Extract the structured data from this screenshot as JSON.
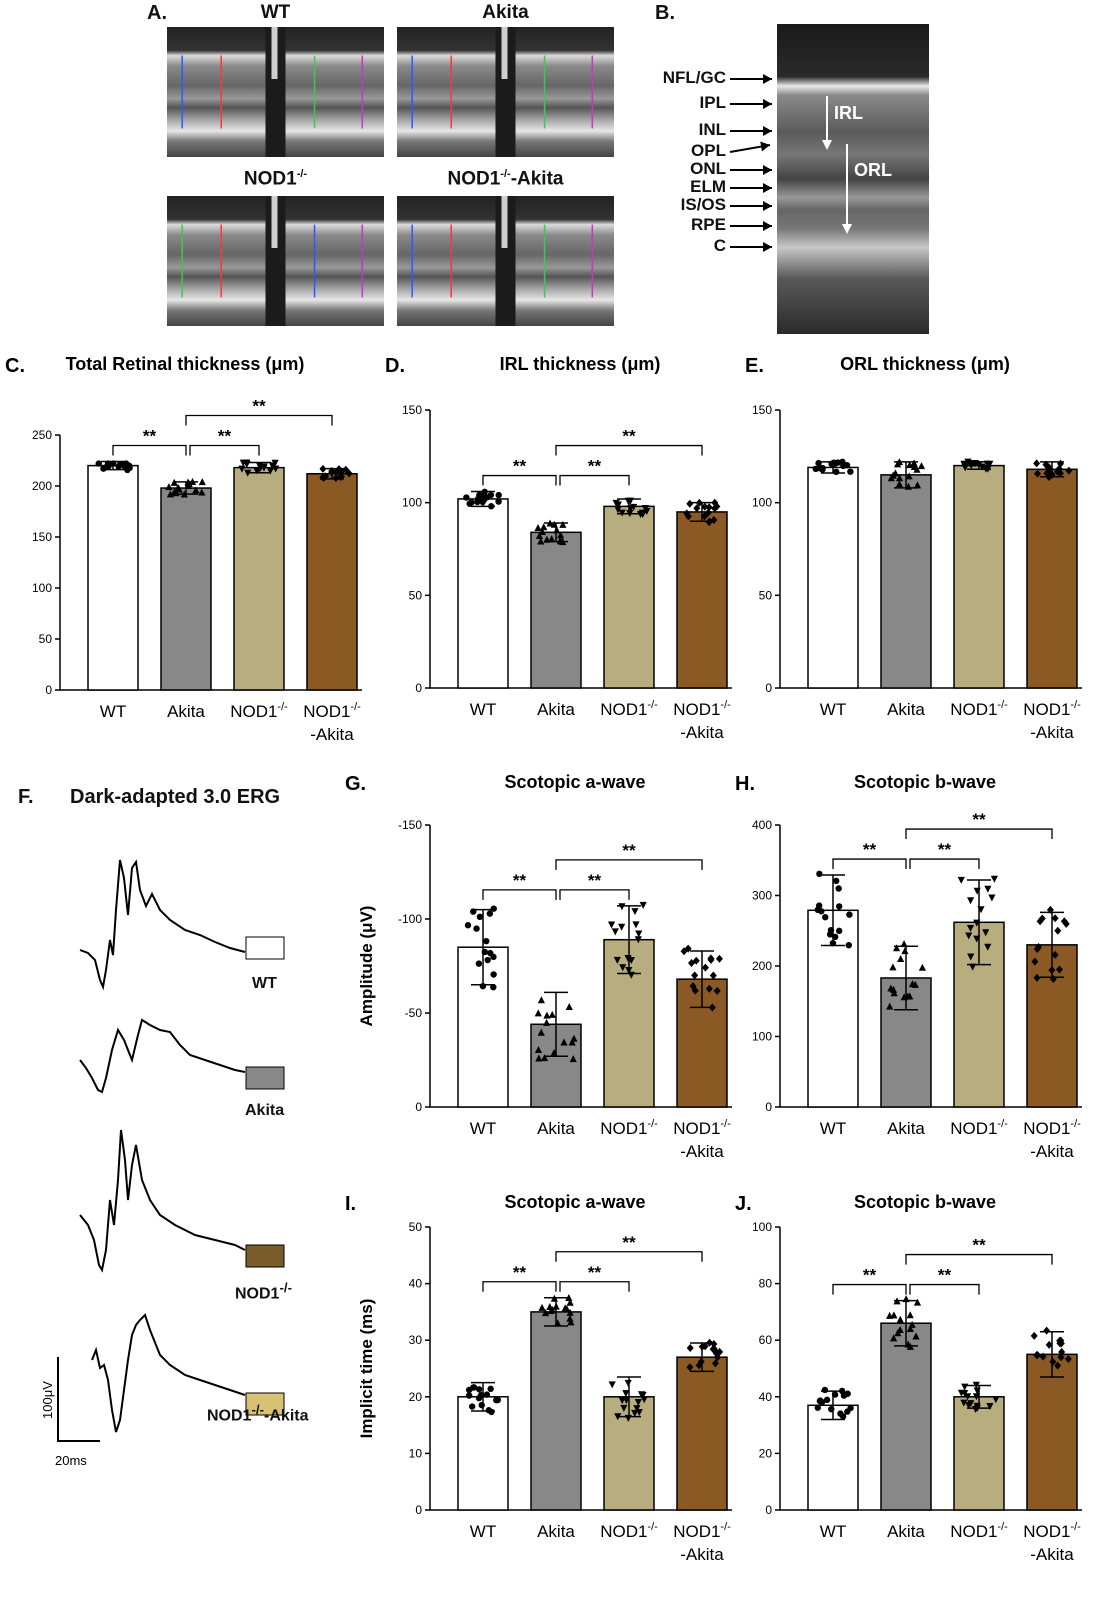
{
  "colors": {
    "WT": "#ffffff",
    "Akita": "#888888",
    "NOD1": "#b7ad7f",
    "NOD1Akita": "#8b5a24"
  },
  "panelA": {
    "letter": "A.",
    "labels": [
      "WT",
      "Akita",
      "NOD1-/-",
      "NOD1-/--Akita"
    ],
    "label_parts": [
      {
        "main": "WT",
        "sup": ""
      },
      {
        "main": "Akita",
        "sup": ""
      },
      {
        "main": "NOD1",
        "sup": "-/-"
      },
      {
        "main": "NOD1",
        "sup": "-/-",
        "tail": "-Akita"
      }
    ]
  },
  "panelB": {
    "letter": "B.",
    "layers": [
      "NFL/GC",
      "IPL",
      "INL",
      "OPL",
      "ONL",
      "ELM",
      "IS/OS",
      "RPE",
      "C"
    ],
    "arrow_labels": [
      "IRL",
      "ORL"
    ]
  },
  "panelF": {
    "letter": "F.",
    "title": "Dark-adapted 3.0 ERG",
    "traces": [
      {
        "name": "WT",
        "sup": "",
        "color": "#ffffff"
      },
      {
        "name": "Akita",
        "sup": "",
        "color": "#888888"
      },
      {
        "name": "NOD1",
        "sup": "-/-",
        "color": "#7a5b2a"
      },
      {
        "name": "NOD1",
        "sup": "-/-",
        "tail": "-Akita",
        "color": "#d9c173"
      }
    ],
    "scale_y": "100μV",
    "scale_x": "20ms"
  },
  "chart_data": [
    {
      "id": "C",
      "letter": "C.",
      "type": "bar",
      "title": "Total Retinal thickness (μm)",
      "ylabel": "",
      "ylim": [
        0,
        250
      ],
      "yticks": [
        0,
        50,
        100,
        150,
        200,
        250
      ],
      "inverted": false,
      "categories": [
        "WT",
        "Akita",
        "NOD1-/-",
        "NOD1-/--Akita"
      ],
      "values": [
        220,
        198,
        218,
        212
      ],
      "sd": [
        4,
        6,
        5,
        5
      ],
      "significance": [
        {
          "from": 0,
          "to": 1,
          "label": "**"
        },
        {
          "from": 1,
          "to": 2,
          "label": "**"
        },
        {
          "from": 1,
          "to": 3,
          "label": "**"
        }
      ]
    },
    {
      "id": "D",
      "letter": "D.",
      "type": "bar",
      "title": "IRL thickness (μm)",
      "ylabel": "",
      "ylim": [
        0,
        150
      ],
      "yticks": [
        0,
        50,
        100,
        150
      ],
      "inverted": false,
      "categories": [
        "WT",
        "Akita",
        "NOD1-/-",
        "NOD1-/--Akita"
      ],
      "values": [
        102,
        84,
        98,
        95
      ],
      "sd": [
        4,
        5,
        4,
        5
      ],
      "significance": [
        {
          "from": 0,
          "to": 1,
          "label": "**"
        },
        {
          "from": 1,
          "to": 2,
          "label": "**"
        },
        {
          "from": 1,
          "to": 3,
          "label": "**"
        }
      ]
    },
    {
      "id": "E",
      "letter": "E.",
      "type": "bar",
      "title": "ORL thickness (μm)",
      "ylabel": "",
      "ylim": [
        0,
        150
      ],
      "yticks": [
        0,
        50,
        100,
        150
      ],
      "inverted": false,
      "categories": [
        "WT",
        "Akita",
        "NOD1-/-",
        "NOD1-/--Akita"
      ],
      "values": [
        119,
        115,
        120,
        118
      ],
      "sd": [
        3,
        7,
        2,
        4
      ],
      "significance": []
    },
    {
      "id": "G",
      "letter": "G.",
      "type": "bar",
      "title": "Scotopic a-wave",
      "ylabel": "Amplitude (μV)",
      "ylim": [
        0,
        -150
      ],
      "yticks": [
        0,
        -50,
        -100,
        -150
      ],
      "inverted": true,
      "categories": [
        "WT",
        "Akita",
        "NOD1-/-",
        "NOD1-/--Akita"
      ],
      "values": [
        -85,
        -44,
        -89,
        -68
      ],
      "sd": [
        20,
        17,
        18,
        15
      ],
      "significance": [
        {
          "from": 0,
          "to": 1,
          "label": "**"
        },
        {
          "from": 1,
          "to": 2,
          "label": "**"
        },
        {
          "from": 1,
          "to": 3,
          "label": "**"
        }
      ]
    },
    {
      "id": "H",
      "letter": "H.",
      "type": "bar",
      "title": "Scotopic b-wave",
      "ylabel": "",
      "ylim": [
        0,
        400
      ],
      "yticks": [
        0,
        100,
        200,
        300,
        400
      ],
      "inverted": false,
      "categories": [
        "WT",
        "Akita",
        "NOD1-/-",
        "NOD1-/--Akita"
      ],
      "values": [
        279,
        183,
        262,
        230
      ],
      "sd": [
        50,
        45,
        60,
        46
      ],
      "significance": [
        {
          "from": 0,
          "to": 1,
          "label": "**"
        },
        {
          "from": 1,
          "to": 2,
          "label": "**"
        },
        {
          "from": 1,
          "to": 3,
          "label": "**"
        }
      ]
    },
    {
      "id": "I",
      "letter": "I.",
      "type": "bar",
      "title": "Scotopic a-wave",
      "ylabel": "Implicit time (ms)",
      "ylim": [
        0,
        50
      ],
      "yticks": [
        0,
        10,
        20,
        30,
        40,
        50
      ],
      "inverted": false,
      "categories": [
        "WT",
        "Akita",
        "NOD1-/-",
        "NOD1-/--Akita"
      ],
      "values": [
        20,
        35,
        20,
        27
      ],
      "sd": [
        2.5,
        2.5,
        3.5,
        2.5
      ],
      "significance": [
        {
          "from": 0,
          "to": 1,
          "label": "**"
        },
        {
          "from": 1,
          "to": 2,
          "label": "**"
        },
        {
          "from": 1,
          "to": 3,
          "label": "**"
        }
      ]
    },
    {
      "id": "J",
      "letter": "J.",
      "type": "bar",
      "title": "Scotopic b-wave",
      "ylabel": "",
      "ylim": [
        0,
        100
      ],
      "yticks": [
        0,
        20,
        40,
        60,
        80,
        100
      ],
      "inverted": false,
      "categories": [
        "WT",
        "Akita",
        "NOD1-/-",
        "NOD1-/--Akita"
      ],
      "values": [
        37,
        66,
        40,
        55
      ],
      "sd": [
        5,
        8,
        4,
        8
      ],
      "significance": [
        {
          "from": 0,
          "to": 1,
          "label": "**"
        },
        {
          "from": 1,
          "to": 2,
          "label": "**"
        },
        {
          "from": 1,
          "to": 3,
          "label": "**"
        }
      ]
    }
  ]
}
